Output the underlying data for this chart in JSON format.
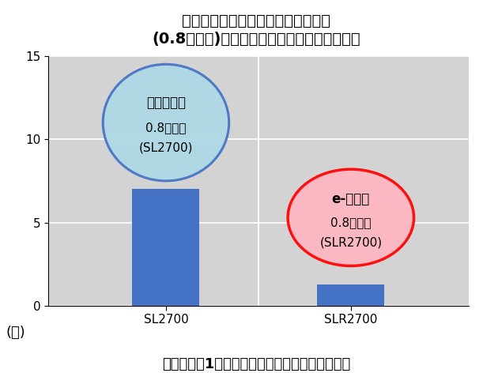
{
  "title_line1": "キャベツ育苗期間における赤ネット",
  "title_line2": "(0.8㎜目合)を用いたネギアザミウマ防除効果",
  "categories": [
    "SL2700",
    "SLR2700"
  ],
  "values": [
    7.0,
    1.3
  ],
  "bar_color": "#4472C4",
  "ylim": [
    0,
    15
  ],
  "yticks": [
    0,
    5,
    10,
    15
  ],
  "ylabel_left": "(頭)",
  "xlabel_bottom": "キャベツ苗1株あたりのネギアザミウマ寄生頭数",
  "bubble1_label_line1": "ソフライト",
  "bubble1_label_line2": "0.8㎜目合",
  "bubble1_label_line3": "(SL2700)",
  "bubble1_fill": "#ADD8E6",
  "bubble1_edge": "#4472C4",
  "bubble2_label_line1": "e-レッド",
  "bubble2_label_line2": "0.8㎜目合",
  "bubble2_label_line3": "(SLR2700)",
  "bubble2_fill": "#FFB6C1",
  "bubble2_edge": "#FF0000",
  "bg_color": "#D3D3D3",
  "title_fontsize": 14,
  "tick_fontsize": 11,
  "label_fontsize": 13,
  "bubble_fontsize": 11
}
